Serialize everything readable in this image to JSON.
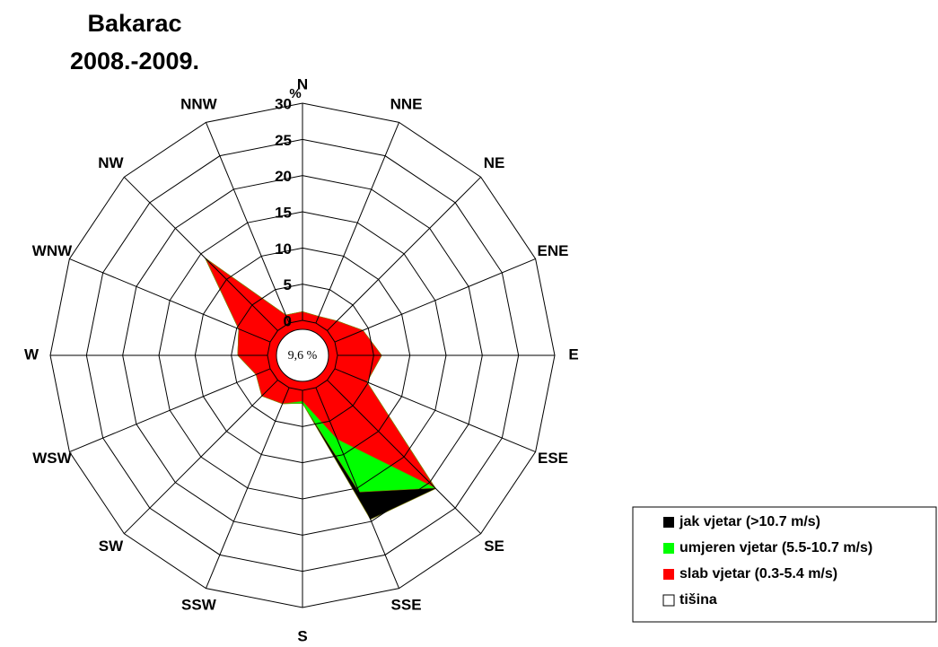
{
  "chart_data": {
    "type": "wind_rose",
    "title": "Bakarac",
    "subtitle": "2008.-2009.",
    "y_unit": "%",
    "calm_label": "9,6 %",
    "calm_legend": "tišina",
    "categories": [
      "N",
      "NNE",
      "NE",
      "ENE",
      "E",
      "ESE",
      "SE",
      "SSE",
      "S",
      "SSW",
      "SW",
      "WSW",
      "W",
      "WNW",
      "NW",
      "NNW"
    ],
    "series": [
      {
        "name": "slab vjetar (0.3-5.4 m/s)",
        "color": "#ff0000",
        "values": [
          1.2,
          1.0,
          1.9,
          4.2,
          6.1,
          4.8,
          21.0,
          7.7,
          1.5,
          2.4,
          3.1,
          2.1,
          4.1,
          4.7,
          14.1,
          1.2
        ]
      },
      {
        "name": "umjeren vjetar (5.5-10.7 m/s)",
        "color": "#00ff00",
        "values": [
          0,
          0,
          0,
          0,
          0,
          0,
          0.1,
          7.9,
          0.3,
          0,
          0,
          0,
          0,
          0,
          0.1,
          0
        ]
      },
      {
        "name": "jak  vjetar (>10.7 m/s)",
        "color": "#000000",
        "values": [
          0,
          0,
          0,
          0,
          0,
          0,
          0.1,
          4.1,
          0,
          0,
          0,
          0,
          0,
          0,
          0,
          0
        ]
      }
    ],
    "ylim": [
      0,
      30
    ],
    "yticks": [
      0,
      5,
      10,
      15,
      20,
      25,
      30
    ]
  }
}
